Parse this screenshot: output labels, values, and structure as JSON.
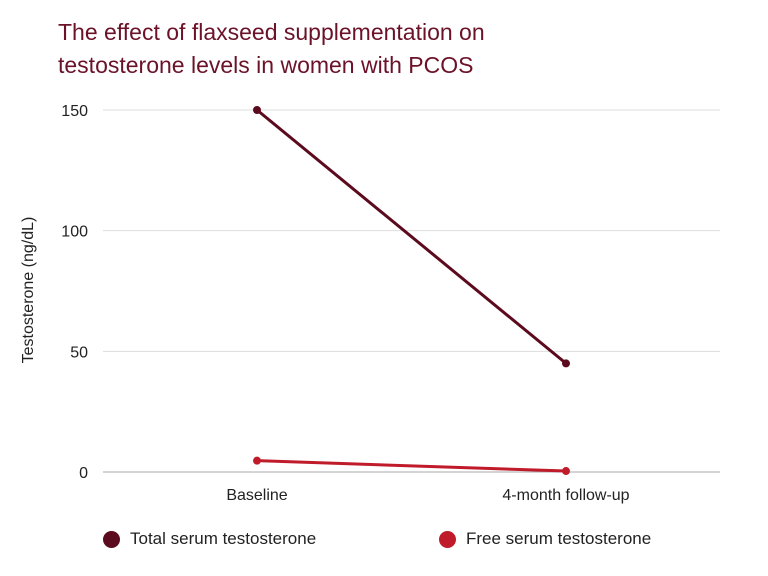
{
  "chart_data": {
    "type": "line",
    "title": "The effect of flaxseed supplementation on testosterone levels in women with PCOS",
    "title_lines": [
      "The effect of flaxseed supplementation on",
      "testosterone levels in women with PCOS"
    ],
    "xlabel": "",
    "ylabel": "Testosterone (ng/dL)",
    "categories": [
      "Baseline",
      "4-month follow-up"
    ],
    "ylim": [
      0,
      150
    ],
    "yticks": [
      0,
      50,
      100,
      150
    ],
    "grid": true,
    "legend": "bottom",
    "series": [
      {
        "name": "Total serum testosterone",
        "values": [
          150,
          45
        ],
        "color": "#5c0a1e"
      },
      {
        "name": "Free serum testosterone",
        "values": [
          4.7,
          0.4
        ],
        "color": "#c01b2b"
      }
    ]
  }
}
